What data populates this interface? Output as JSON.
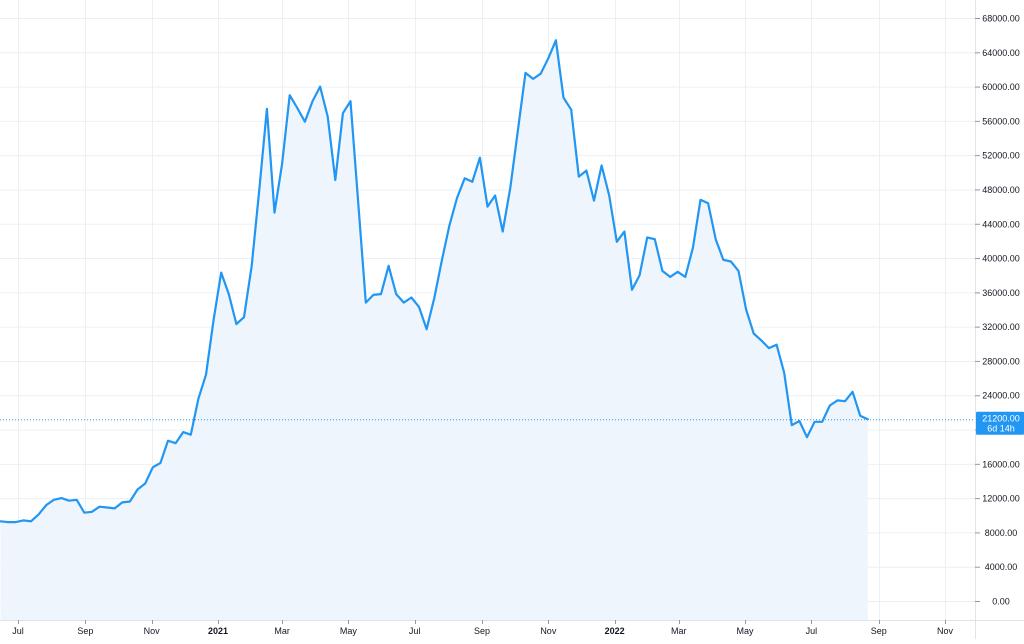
{
  "chart_data": {
    "type": "area",
    "title": "",
    "xlabel": "",
    "ylabel": "",
    "ylim": [
      0,
      68000
    ],
    "y_ticks": [
      0,
      4000,
      8000,
      12000,
      16000,
      20000,
      24000,
      28000,
      32000,
      36000,
      40000,
      44000,
      48000,
      52000,
      56000,
      60000,
      64000,
      68000
    ],
    "y_tick_labels": [
      "0.00",
      "4000.00",
      "8000.00",
      "12000.00",
      "16000.00",
      "20000.00",
      "24000.00",
      "28000.00",
      "32000.00",
      "36000.00",
      "40000.00",
      "44000.00",
      "48000.00",
      "52000.00",
      "56000.00",
      "60000.00",
      "64000.00",
      "68000.00"
    ],
    "x_range": [
      "2020-06-15",
      "2022-11-21"
    ],
    "x_ticks": [
      {
        "date": "2020-07-01",
        "label": "Jul",
        "bold": false
      },
      {
        "date": "2020-09-01",
        "label": "Sep",
        "bold": false
      },
      {
        "date": "2020-11-01",
        "label": "Nov",
        "bold": false
      },
      {
        "date": "2021-01-01",
        "label": "2021",
        "bold": true
      },
      {
        "date": "2021-03-01",
        "label": "Mar",
        "bold": false
      },
      {
        "date": "2021-05-01",
        "label": "May",
        "bold": false
      },
      {
        "date": "2021-07-01",
        "label": "Jul",
        "bold": false
      },
      {
        "date": "2021-09-01",
        "label": "Sep",
        "bold": false
      },
      {
        "date": "2021-11-01",
        "label": "Nov",
        "bold": false
      },
      {
        "date": "2022-01-01",
        "label": "2022",
        "bold": true
      },
      {
        "date": "2022-03-01",
        "label": "Mar",
        "bold": false
      },
      {
        "date": "2022-05-01",
        "label": "May",
        "bold": false
      },
      {
        "date": "2022-07-01",
        "label": "Jul",
        "bold": false
      },
      {
        "date": "2022-09-01",
        "label": "Sep",
        "bold": false
      },
      {
        "date": "2022-11-01",
        "label": "Nov",
        "bold": false
      }
    ],
    "grid": true,
    "colors": {
      "line": "#2196f3",
      "fill": "#eef5fc",
      "grid": "#ecf0f4",
      "axis_text": "#131722",
      "price_tag": "#2196f3"
    },
    "last_price": {
      "value": 21200,
      "label": "21200.00",
      "countdown": "6d 14h"
    },
    "series": [
      {
        "x": [
          "2020-06-15",
          "2020-06-22",
          "2020-06-29",
          "2020-07-06",
          "2020-07-13",
          "2020-07-20",
          "2020-07-27",
          "2020-08-03",
          "2020-08-10",
          "2020-08-17",
          "2020-08-24",
          "2020-08-31",
          "2020-09-07",
          "2020-09-14",
          "2020-09-21",
          "2020-09-28",
          "2020-10-05",
          "2020-10-12",
          "2020-10-19",
          "2020-10-26",
          "2020-11-02",
          "2020-11-09",
          "2020-11-16",
          "2020-11-23",
          "2020-11-30",
          "2020-12-07",
          "2020-12-14",
          "2020-12-21",
          "2020-12-28",
          "2021-01-04",
          "2021-01-11",
          "2021-01-18",
          "2021-01-25",
          "2021-02-01",
          "2021-02-08",
          "2021-02-15",
          "2021-02-22",
          "2021-03-01",
          "2021-03-08",
          "2021-03-15",
          "2021-03-22",
          "2021-03-29",
          "2021-04-05",
          "2021-04-12",
          "2021-04-19",
          "2021-04-26",
          "2021-05-03",
          "2021-05-10",
          "2021-05-17",
          "2021-05-24",
          "2021-05-31",
          "2021-06-07",
          "2021-06-14",
          "2021-06-21",
          "2021-06-28",
          "2021-07-05",
          "2021-07-12",
          "2021-07-19",
          "2021-07-26",
          "2021-08-02",
          "2021-08-09",
          "2021-08-16",
          "2021-08-23",
          "2021-08-30",
          "2021-09-06",
          "2021-09-13",
          "2021-09-20",
          "2021-09-27",
          "2021-10-04",
          "2021-10-11",
          "2021-10-18",
          "2021-10-25",
          "2021-11-01",
          "2021-11-08",
          "2021-11-15",
          "2021-11-22",
          "2021-11-29",
          "2021-12-06",
          "2021-12-13",
          "2021-12-20",
          "2021-12-27",
          "2022-01-03",
          "2022-01-10",
          "2022-01-17",
          "2022-01-24",
          "2022-01-31",
          "2022-02-07",
          "2022-02-14",
          "2022-02-21",
          "2022-02-28",
          "2022-03-07",
          "2022-03-14",
          "2022-03-21",
          "2022-03-28",
          "2022-04-04",
          "2022-04-11",
          "2022-04-18",
          "2022-04-25",
          "2022-05-02",
          "2022-05-09",
          "2022-05-16",
          "2022-05-23",
          "2022-05-30",
          "2022-06-06",
          "2022-06-13",
          "2022-06-20",
          "2022-06-27",
          "2022-07-04",
          "2022-07-11",
          "2022-07-18",
          "2022-07-25",
          "2022-08-01",
          "2022-08-08",
          "2022-08-15",
          "2022-08-22"
        ],
        "values": [
          9300,
          9200,
          9200,
          9400,
          9300,
          10100,
          11200,
          11800,
          12000,
          11700,
          11800,
          10300,
          10400,
          11000,
          10900,
          10800,
          11500,
          11600,
          13000,
          13700,
          15600,
          16100,
          18700,
          18400,
          19700,
          19400,
          23600,
          26400,
          32800,
          38300,
          35800,
          32300,
          33100,
          39100,
          48000,
          57400,
          45300,
          51000,
          59000,
          57500,
          55900,
          58300,
          60000,
          56500,
          49100,
          56900,
          58300,
          46500,
          34800,
          35700,
          35800,
          39100,
          35800,
          34800,
          35400,
          34300,
          31700,
          35300,
          39700,
          43800,
          47000,
          49300,
          48900,
          51700,
          46000,
          47300,
          43100,
          48200,
          54900,
          61600,
          60900,
          61500,
          63300,
          65400,
          58700,
          57300,
          49500,
          50200,
          46700,
          50800,
          47300,
          41900,
          43100,
          36300,
          38000,
          42400,
          42200,
          38500,
          37800,
          38400,
          37800,
          41200,
          46800,
          46400,
          42200,
          39800,
          39600,
          38500,
          34000,
          31200,
          30400,
          29500,
          29900,
          26600,
          20500,
          21000,
          19100,
          20900,
          20900,
          22800,
          23400,
          23300,
          24400,
          21600,
          21200
        ]
      }
    ]
  }
}
